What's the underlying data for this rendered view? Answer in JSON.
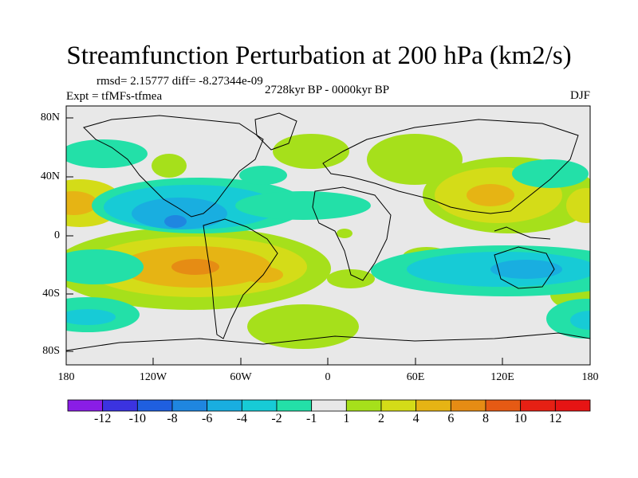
{
  "title": "Streamfunction Perturbation at 200 hPa (km2/s)",
  "stats_line": "rmsd= 2.15777 diff= -8.27344e-09",
  "experiment_line": "Expt = tfMFs-tfmea",
  "period_line": "2728kyr BP - 0000kyr BP",
  "season": "DJF",
  "y_ticks": [
    "80N",
    "40N",
    "0",
    "40S",
    "80S"
  ],
  "x_ticks": [
    "180",
    "120W",
    "60W",
    "0",
    "60E",
    "120E",
    "180"
  ],
  "colorbar": {
    "labels": [
      "-12",
      "-10",
      "-8",
      "-6",
      "-4",
      "-2",
      "-1",
      "1",
      "2",
      "4",
      "6",
      "8",
      "10",
      "12"
    ],
    "colors": [
      "#8a1de6",
      "#3b33e0",
      "#1f5fe0",
      "#1f86e0",
      "#19aee0",
      "#17cbd6",
      "#23e0a8",
      "#e8e8e8",
      "#a6e01b",
      "#d4dc18",
      "#e6b414",
      "#e68c14",
      "#e65a14",
      "#e62014",
      "#e61414"
    ]
  }
}
